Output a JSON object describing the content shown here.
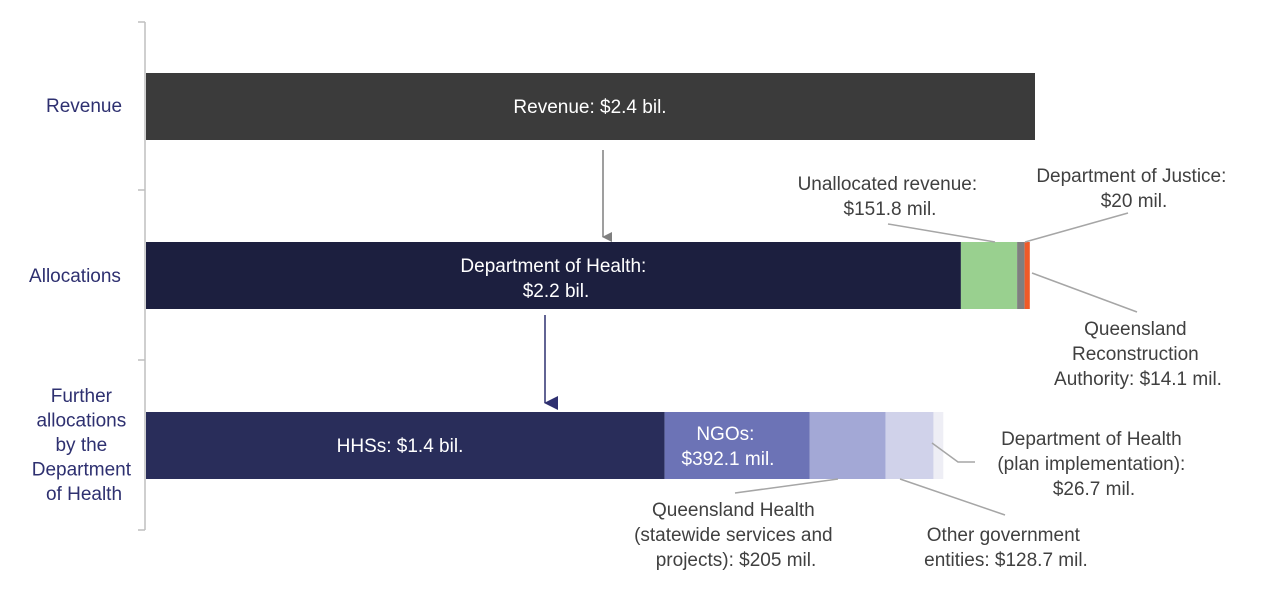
{
  "chart_data": {
    "type": "bar",
    "orientation": "horizontal-stacked",
    "unit": "$ million",
    "categories": [
      "Revenue",
      "Allocations",
      "Further allocations by the Department of Health"
    ],
    "rows": [
      {
        "category": "Revenue",
        "segments": [
          {
            "name": "Revenue",
            "label": "Revenue: $2.4 bil.",
            "value": 2400,
            "color": "#3b3b3b"
          }
        ]
      },
      {
        "category": "Allocations",
        "segments": [
          {
            "name": "Department of Health",
            "label": "Department of Health: $2.2 bil.",
            "value": 2200,
            "color": "#1c1f3f"
          },
          {
            "name": "Unallocated revenue",
            "label": "Unallocated revenue: $151.8 mil.",
            "value": 151.8,
            "color": "#99d08f"
          },
          {
            "name": "Department of Justice",
            "label": "Department of Justice: $20 mil.",
            "value": 20,
            "color": "#7f7f7f"
          },
          {
            "name": "Queensland Reconstruction Authority",
            "label": "Queensland Reconstruction Authority: $14.1 mil.",
            "value": 14.1,
            "color": "#f05a28"
          }
        ]
      },
      {
        "category": "Further allocations by the Department of Health",
        "segments": [
          {
            "name": "HHSs",
            "label": "HHSs: $1.4 bil.",
            "value": 1400,
            "color": "#292d5a"
          },
          {
            "name": "NGOs",
            "label": "NGOs: $392.1 mil.",
            "value": 392.1,
            "color": "#6c73b6"
          },
          {
            "name": "Queensland Health (statewide services and projects)",
            "label": "Queensland Health (statewide services and projects): $205 mil.",
            "value": 205,
            "color": "#a3a8d6"
          },
          {
            "name": "Other government entities",
            "label": "Other government entities: $128.7 mil.",
            "value": 128.7,
            "color": "#d0d2ea"
          },
          {
            "name": "Department of Health (plan implementation)",
            "label": "Department of Health (plan implementation): $26.7 mil.",
            "value": 26.7,
            "color": "#eeeef5"
          }
        ]
      }
    ],
    "xlim": [
      0,
      2400
    ],
    "grid": false,
    "legend": "none",
    "category_label_lines": [
      [
        "Revenue"
      ],
      [
        "Allocations"
      ],
      [
        "Further",
        "allocations",
        "by the",
        "Department",
        "of Health"
      ]
    ],
    "label_lines": {
      "revenue": [
        "Revenue: $2.4 bil."
      ],
      "doh": [
        "Department of Health:",
        "$2.2 bil."
      ],
      "unallocated": [
        "Unallocated revenue:",
        "$151.8 mil."
      ],
      "justice": [
        "Department of Justice:",
        "$20 mil."
      ],
      "qra": [
        "Queensland",
        "Reconstruction",
        "Authority: $14.1 mil."
      ],
      "hhs": [
        "HHSs: $1.4 bil."
      ],
      "ngo": [
        "NGOs:",
        "$392.1 mil."
      ],
      "qh": [
        "Queensland Health",
        "(statewide services and",
        "projects): $205 mil."
      ],
      "oge": [
        "Other government",
        "entities: $128.7 mil."
      ],
      "dohplan": [
        "Department of Health",
        "(plan implementation):",
        "$26.7 mil."
      ]
    }
  }
}
